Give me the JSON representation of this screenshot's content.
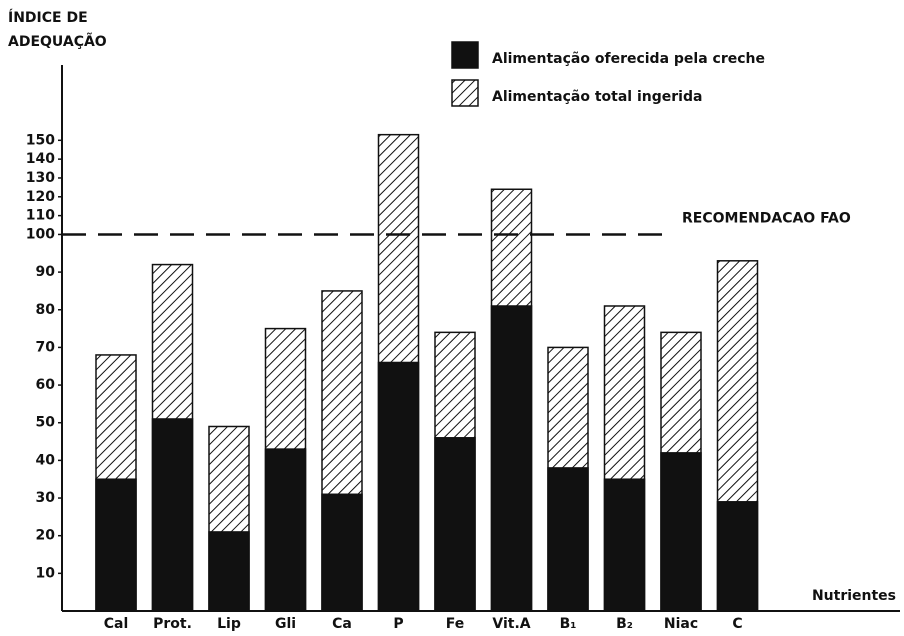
{
  "chart_data": {
    "type": "bar",
    "y_label": [
      "ÍNDICE DE",
      "ADEQUAÇÃO"
    ],
    "x_label": "Nutrientes",
    "categories": [
      "Cal",
      "Prot.",
      "Lip",
      "Gli",
      "Ca",
      "P",
      "Fe",
      "Vit.A",
      "B₁",
      "B₂",
      "Niac",
      "C"
    ],
    "series": [
      {
        "name": "Alimentação total ingerida",
        "color": "#111111",
        "pattern": "hatch",
        "values": [
          68,
          92,
          49,
          75,
          85,
          153,
          74,
          124,
          70,
          81,
          74,
          93
        ]
      },
      {
        "name": "Alimentação oferecida pela creche",
        "color": "#111111",
        "pattern": "solid",
        "values": [
          35,
          51,
          21,
          43,
          31,
          66,
          46,
          81,
          38,
          35,
          42,
          29
        ]
      }
    ],
    "legend_order": [
      1,
      0
    ],
    "ylim": [
      0,
      190
    ],
    "yticks": [
      10,
      20,
      30,
      40,
      50,
      60,
      70,
      80,
      90,
      100,
      110,
      120,
      130,
      140,
      150
    ],
    "scale_break": {
      "value": 100,
      "ratio": 0.5
    },
    "reference_line": {
      "value": 100,
      "label": "RECOMENDACAO FAO"
    }
  }
}
